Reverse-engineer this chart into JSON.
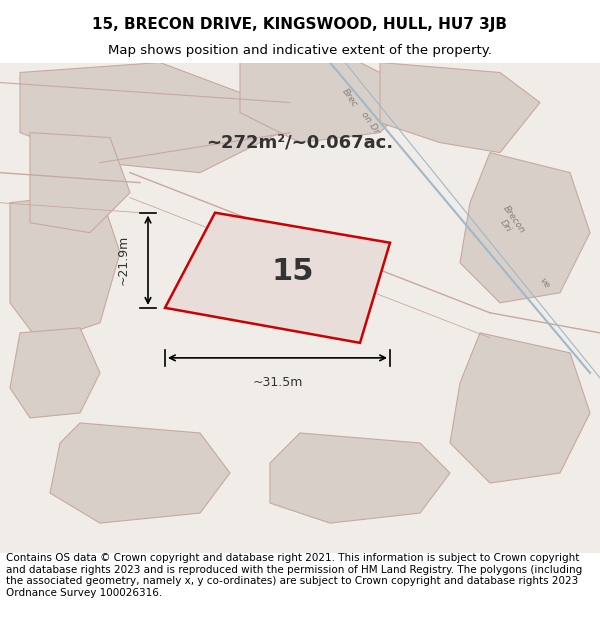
{
  "title_line1": "15, BRECON DRIVE, KINGSWOOD, HULL, HU7 3JB",
  "title_line2": "Map shows position and indicative extent of the property.",
  "footer_text": "Contains OS data © Crown copyright and database right 2021. This information is subject to Crown copyright and database rights 2023 and is reproduced with the permission of HM Land Registry. The polygons (including the associated geometry, namely x, y co-ordinates) are subject to Crown copyright and database rights 2023 Ordnance Survey 100026316.",
  "area_text": "~272m²/~0.067ac.",
  "number_text": "15",
  "dim_width": "~31.5m",
  "dim_height": "~21.9m",
  "background_color": "#f0ece8",
  "map_bg": "#f0ece8",
  "plot_fill": "#d8d0c8",
  "plot_outline": "#cc0000",
  "road_line_color": "#c8a8a0",
  "road_blue_color": "#a0b8c8",
  "title_fontsize": 11,
  "subtitle_fontsize": 9.5,
  "footer_fontsize": 7.5
}
